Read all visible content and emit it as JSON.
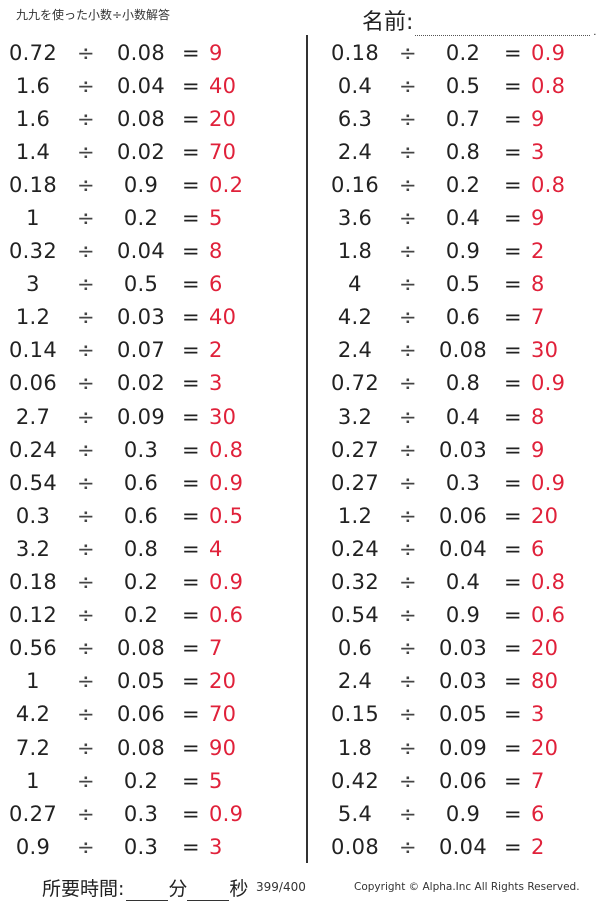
{
  "header": {
    "title": "九九を使った小数÷小数解答",
    "name_label": "名前:",
    "name_dot": "."
  },
  "operator": "÷",
  "equals": "=",
  "problems_left": [
    {
      "a": "0.72",
      "b": "0.08",
      "answer": "9"
    },
    {
      "a": "1.6",
      "b": "0.04",
      "answer": "40"
    },
    {
      "a": "1.6",
      "b": "0.08",
      "answer": "20"
    },
    {
      "a": "1.4",
      "b": "0.02",
      "answer": "70"
    },
    {
      "a": "0.18",
      "b": "0.9",
      "answer": "0.2"
    },
    {
      "a": "1",
      "b": "0.2",
      "answer": "5"
    },
    {
      "a": "0.32",
      "b": "0.04",
      "answer": "8"
    },
    {
      "a": "3",
      "b": "0.5",
      "answer": "6"
    },
    {
      "a": "1.2",
      "b": "0.03",
      "answer": "40"
    },
    {
      "a": "0.14",
      "b": "0.07",
      "answer": "2"
    },
    {
      "a": "0.06",
      "b": "0.02",
      "answer": "3"
    },
    {
      "a": "2.7",
      "b": "0.09",
      "answer": "30"
    },
    {
      "a": "0.24",
      "b": "0.3",
      "answer": "0.8"
    },
    {
      "a": "0.54",
      "b": "0.6",
      "answer": "0.9"
    },
    {
      "a": "0.3",
      "b": "0.6",
      "answer": "0.5"
    },
    {
      "a": "3.2",
      "b": "0.8",
      "answer": "4"
    },
    {
      "a": "0.18",
      "b": "0.2",
      "answer": "0.9"
    },
    {
      "a": "0.12",
      "b": "0.2",
      "answer": "0.6"
    },
    {
      "a": "0.56",
      "b": "0.08",
      "answer": "7"
    },
    {
      "a": "1",
      "b": "0.05",
      "answer": "20"
    },
    {
      "a": "4.2",
      "b": "0.06",
      "answer": "70"
    },
    {
      "a": "7.2",
      "b": "0.08",
      "answer": "90"
    },
    {
      "a": "1",
      "b": "0.2",
      "answer": "5"
    },
    {
      "a": "0.27",
      "b": "0.3",
      "answer": "0.9"
    },
    {
      "a": "0.9",
      "b": "0.3",
      "answer": "3"
    }
  ],
  "problems_right": [
    {
      "a": "0.18",
      "b": "0.2",
      "answer": "0.9"
    },
    {
      "a": "0.4",
      "b": "0.5",
      "answer": "0.8"
    },
    {
      "a": "6.3",
      "b": "0.7",
      "answer": "9"
    },
    {
      "a": "2.4",
      "b": "0.8",
      "answer": "3"
    },
    {
      "a": "0.16",
      "b": "0.2",
      "answer": "0.8"
    },
    {
      "a": "3.6",
      "b": "0.4",
      "answer": "9"
    },
    {
      "a": "1.8",
      "b": "0.9",
      "answer": "2"
    },
    {
      "a": "4",
      "b": "0.5",
      "answer": "8"
    },
    {
      "a": "4.2",
      "b": "0.6",
      "answer": "7"
    },
    {
      "a": "2.4",
      "b": "0.08",
      "answer": "30"
    },
    {
      "a": "0.72",
      "b": "0.8",
      "answer": "0.9"
    },
    {
      "a": "3.2",
      "b": "0.4",
      "answer": "8"
    },
    {
      "a": "0.27",
      "b": "0.03",
      "answer": "9"
    },
    {
      "a": "0.27",
      "b": "0.3",
      "answer": "0.9"
    },
    {
      "a": "1.2",
      "b": "0.06",
      "answer": "20"
    },
    {
      "a": "0.24",
      "b": "0.04",
      "answer": "6"
    },
    {
      "a": "0.32",
      "b": "0.4",
      "answer": "0.8"
    },
    {
      "a": "0.54",
      "b": "0.9",
      "answer": "0.6"
    },
    {
      "a": "0.6",
      "b": "0.03",
      "answer": "20"
    },
    {
      "a": "2.4",
      "b": "0.03",
      "answer": "80"
    },
    {
      "a": "0.15",
      "b": "0.05",
      "answer": "3"
    },
    {
      "a": "1.8",
      "b": "0.09",
      "answer": "20"
    },
    {
      "a": "0.42",
      "b": "0.06",
      "answer": "7"
    },
    {
      "a": "5.4",
      "b": "0.9",
      "answer": "6"
    },
    {
      "a": "0.08",
      "b": "0.04",
      "answer": "2"
    }
  ],
  "footer": {
    "time_label": "所要時間:",
    "minutes_unit": "分",
    "seconds_unit": "秒",
    "page": "399/400",
    "copyright": "Copyright © Alpha.Inc All Rights Reserved."
  },
  "colors": {
    "answer": "#e0213a",
    "text": "#222222"
  }
}
